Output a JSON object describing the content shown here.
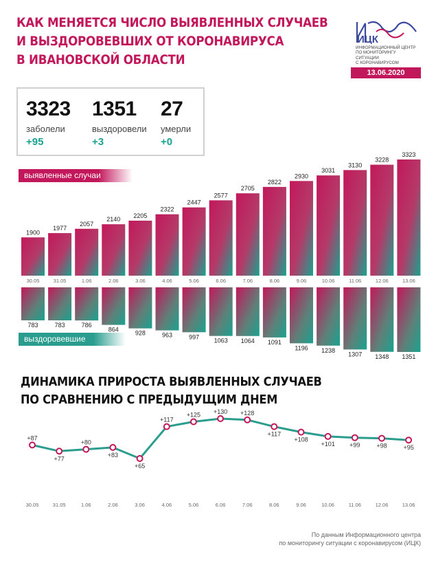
{
  "header": {
    "title_lines": [
      "Как меняется число выявленных случаев",
      "и выздоровевших от коронавируса",
      "в Ивановской области"
    ]
  },
  "logo": {
    "name": "ИЦК",
    "desc_lines": [
      "Информационный центр",
      "по мониторингу ситуации",
      "с коронавирусом"
    ]
  },
  "date": "13.06.2020",
  "stats": {
    "cases": {
      "value": "3323",
      "label": "заболели",
      "delta": "+95"
    },
    "recovered": {
      "value": "1351",
      "label": "выздоровели",
      "delta": "+3"
    },
    "deaths": {
      "value": "27",
      "label": "умерли",
      "delta": "+0"
    }
  },
  "legend": {
    "cases": "выявленные случаи",
    "recovered": "выздоровевшие"
  },
  "section2": {
    "title_lines": [
      "Динамика прироста выявленных случаев",
      "по сравнению с предыдущим днем"
    ]
  },
  "footer": {
    "lines": [
      "По данным Информационного центра",
      "по мониторингу ситуации с коронавирусом (ИЦК)"
    ]
  },
  "colors": {
    "accent": "#c2185b",
    "teal": "#2a9d8f",
    "line": "#2a9d8f",
    "marker": "#c2185b"
  },
  "chart_data": [
    {
      "type": "bar",
      "categories": [
        "30.05",
        "31.05",
        "1.06",
        "2.06",
        "3.06",
        "4.06",
        "5.06",
        "6.06",
        "7.06",
        "8.06",
        "9.06",
        "10.06",
        "11.06",
        "12.06",
        "13.06"
      ],
      "series": [
        {
          "name": "выявленные случаи",
          "values": [
            1900,
            1977,
            2057,
            2140,
            2205,
            2322,
            2447,
            2577,
            2705,
            2822,
            2930,
            3031,
            3130,
            3228,
            3323
          ]
        },
        {
          "name": "выздоровевшие",
          "values": [
            783,
            783,
            786,
            864,
            928,
            963,
            997,
            1063,
            1064,
            1091,
            1196,
            1238,
            1307,
            1348,
            1351
          ]
        }
      ]
    },
    {
      "type": "line",
      "categories": [
        "30.05",
        "31.05",
        "1.06",
        "2.06",
        "3.06",
        "4.06",
        "5.06",
        "6.06",
        "7.06",
        "8.06",
        "9.06",
        "10.06",
        "11.06",
        "12.06",
        "13.06"
      ],
      "values": [
        87,
        77,
        80,
        83,
        65,
        117,
        125,
        130,
        128,
        117,
        108,
        101,
        99,
        98,
        95
      ],
      "labels": [
        "+87",
        "+77",
        "+80",
        "+83",
        "+65",
        "+117",
        "+125",
        "+130",
        "+128",
        "+117",
        "+108",
        "+101",
        "+99",
        "+98",
        "+95"
      ]
    }
  ]
}
